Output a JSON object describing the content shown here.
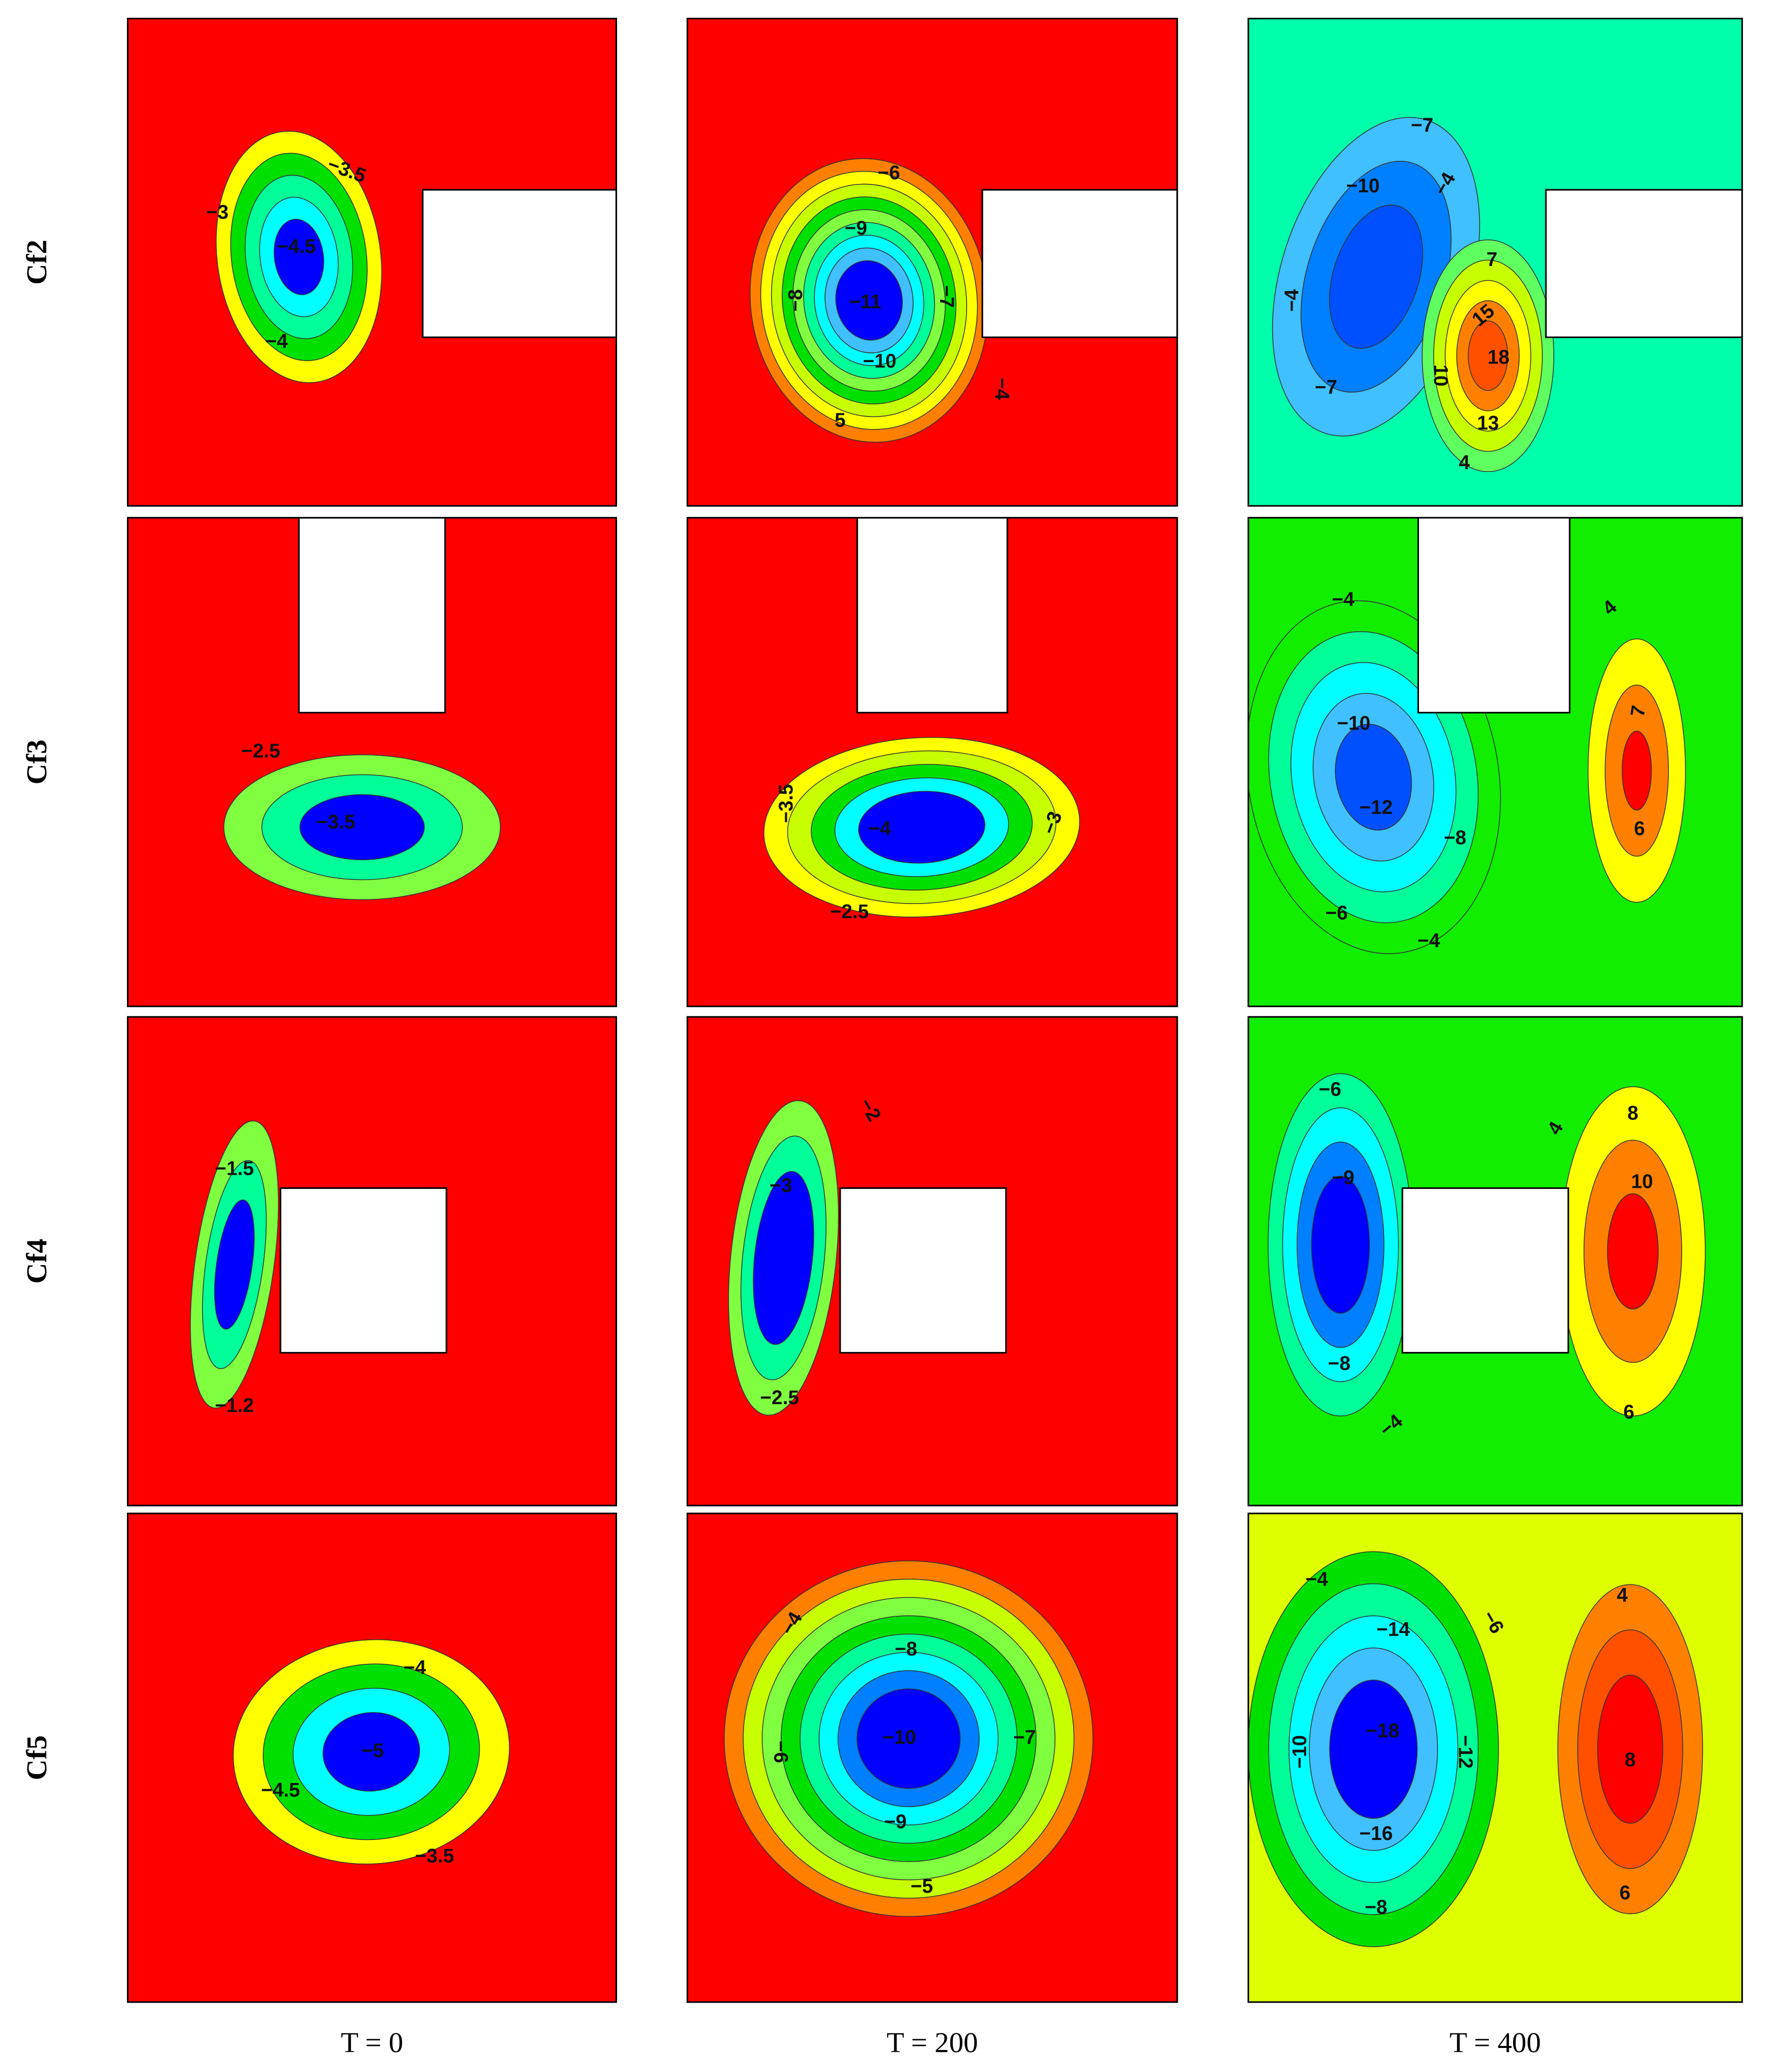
{
  "row_labels": [
    "Cf2",
    "Cf3",
    "Cf4",
    "Cf5"
  ],
  "column_labels": [
    "T = 0",
    "T = 200",
    "T = 400"
  ],
  "panels": [
    [
      {
        "contour_labels": [
          "−3.5",
          "−3",
          "−4.5",
          "−4"
        ]
      },
      {
        "contour_labels": [
          "−6",
          "−9",
          "−8",
          "−11",
          "−7",
          "−10",
          "−4",
          "5"
        ]
      },
      {
        "contour_labels": [
          "−7",
          "−10",
          "−4",
          "−4",
          "−7",
          "7",
          "15",
          "18",
          "10",
          "13",
          "4"
        ]
      }
    ],
    [
      {
        "contour_labels": [
          "−2.5",
          "−3.5"
        ]
      },
      {
        "contour_labels": [
          "−3.5",
          "−4",
          "−3",
          "−2.5"
        ]
      },
      {
        "contour_labels": [
          "−4",
          "−10",
          "−12",
          "−8",
          "−6",
          "−4",
          "4",
          "7",
          "6"
        ]
      }
    ],
    [
      {
        "contour_labels": [
          "−1.5",
          "−1.2"
        ]
      },
      {
        "contour_labels": [
          "−2",
          "−3",
          "−2.5"
        ]
      },
      {
        "contour_labels": [
          "−6",
          "−9",
          "−8",
          "−4",
          "4",
          "8",
          "10",
          "6"
        ]
      }
    ],
    [
      {
        "contour_labels": [
          "−4",
          "−5",
          "−4.5",
          "−3.5"
        ]
      },
      {
        "contour_labels": [
          "−4",
          "−8",
          "−10",
          "−7",
          "−6",
          "−9",
          "−5"
        ]
      },
      {
        "contour_labels": [
          "−4",
          "−14",
          "−6",
          "−10",
          "−18",
          "−12",
          "−16",
          "−8",
          "4",
          "8",
          "6"
        ]
      }
    ]
  ]
}
